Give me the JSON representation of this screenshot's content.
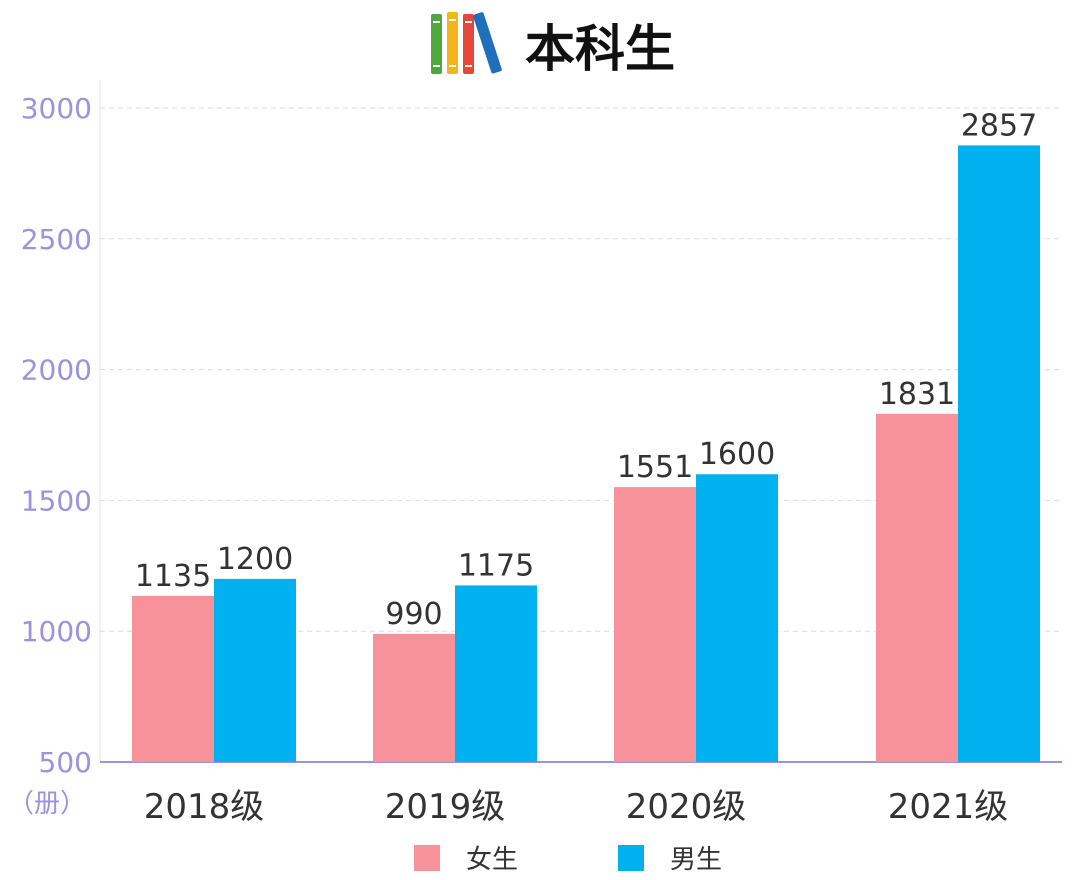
{
  "chart_data": {
    "type": "bar",
    "title": "本科生",
    "title_icon": "books-icon",
    "unit_label": "（册）",
    "categories": [
      "2018级",
      "2019级",
      "2020级",
      "2021级"
    ],
    "series": [
      {
        "name": "女生",
        "color": "#f7929a",
        "values": [
          1135,
          990,
          1551,
          1831
        ]
      },
      {
        "name": "男生",
        "color": "#00b0ef",
        "values": [
          1200,
          1175,
          1600,
          2857
        ]
      }
    ],
    "y_ticks": [
      500,
      1000,
      1500,
      2000,
      2500,
      3000
    ],
    "ylim": [
      500,
      3000
    ],
    "grid": true,
    "legend_position": "bottom-center",
    "colors": {
      "axis_tick_text": "#9b93dd",
      "axis_line": "#9b93dd",
      "grid": "#d9dce3",
      "value_label": "#333333",
      "category_label": "#333333"
    }
  }
}
